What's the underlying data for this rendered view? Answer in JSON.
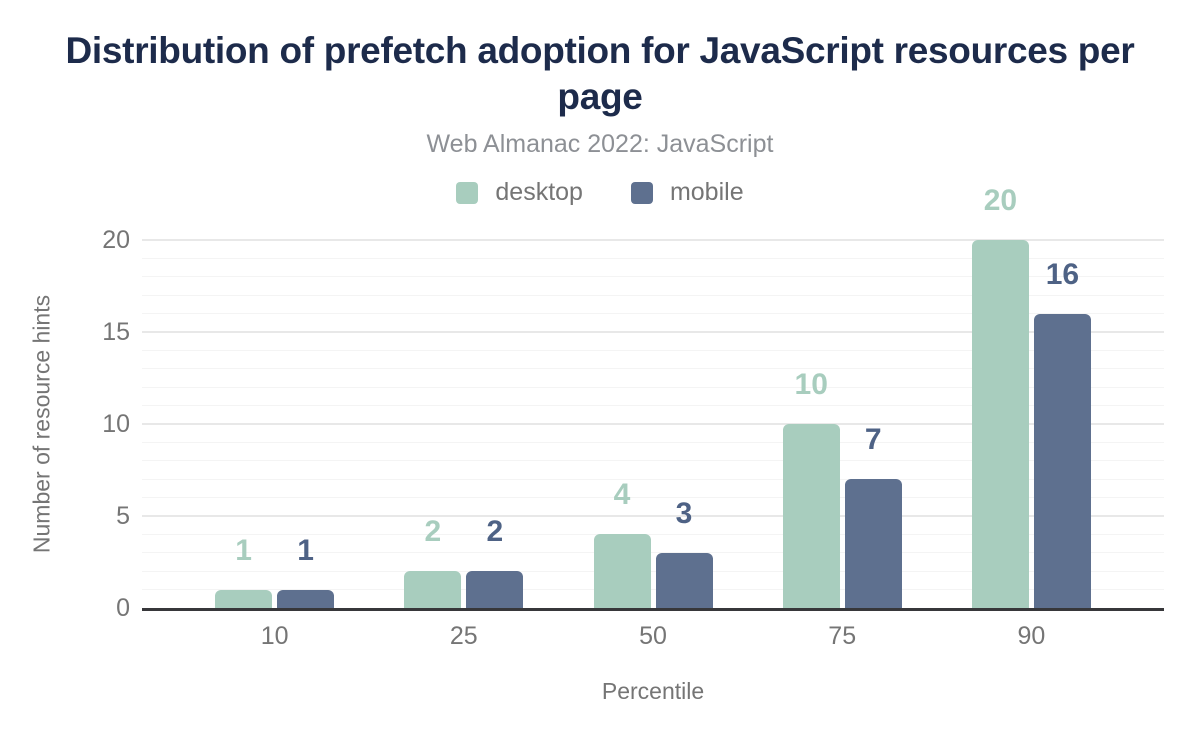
{
  "title": "Distribution of prefetch adoption for JavaScript resources per page",
  "subtitle": "Web Almanac 2022: JavaScript",
  "colors": {
    "title": "#1d2b4b",
    "subtitle": "#8d9095",
    "axis_text": "#757575",
    "baseline": "#37373a",
    "grid_minor": "#f4f4f4",
    "grid_major": "#e8e8e8",
    "background": "#ffffff"
  },
  "chart_data": {
    "type": "bar",
    "title": "Distribution of prefetch adoption for JavaScript resources per page",
    "subtitle": "Web Almanac 2022: JavaScript",
    "categories": [
      "10",
      "25",
      "50",
      "75",
      "90"
    ],
    "series": [
      {
        "name": "desktop",
        "color": "#a8cdbe",
        "label_color": "#a8cdbe",
        "values": [
          1,
          2,
          4,
          10,
          20
        ]
      },
      {
        "name": "mobile",
        "color": "#5e708f",
        "label_color": "#4e6285",
        "values": [
          1,
          2,
          3,
          7,
          16
        ]
      }
    ],
    "xlabel": "Percentile",
    "ylabel": "Number of resource hints",
    "ylim": [
      0,
      20
    ],
    "yticks": [
      0,
      5,
      10,
      15,
      20
    ],
    "grid": "horizontal; minor every 1 unit, major every 5 units",
    "legend_position": "top center",
    "bar_value_labels": true
  }
}
